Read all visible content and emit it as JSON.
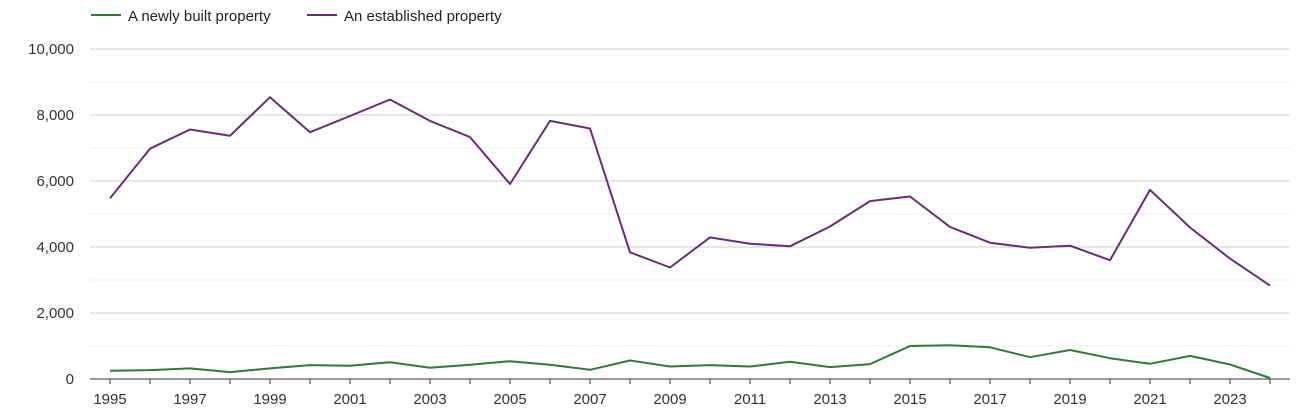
{
  "chart_data": {
    "type": "line",
    "title": "",
    "xlabel": "",
    "ylabel": "",
    "x": [
      1995,
      1996,
      1997,
      1998,
      1999,
      2000,
      2001,
      2002,
      2003,
      2004,
      2005,
      2006,
      2007,
      2008,
      2009,
      2010,
      2011,
      2012,
      2013,
      2014,
      2015,
      2016,
      2017,
      2018,
      2019,
      2020,
      2021,
      2022,
      2023,
      2024
    ],
    "x_tick_labels": [
      "1995",
      "1997",
      "1999",
      "2001",
      "2003",
      "2005",
      "2007",
      "2009",
      "2011",
      "2013",
      "2015",
      "2017",
      "2019",
      "2021",
      "2023"
    ],
    "x_ticks": [
      1995,
      1997,
      1999,
      2001,
      2003,
      2005,
      2007,
      2009,
      2011,
      2013,
      2015,
      2017,
      2019,
      2021,
      2023
    ],
    "y_tick_labels": [
      "0",
      "2,000",
      "4,000",
      "6,000",
      "8,000",
      "10,000"
    ],
    "y_ticks": [
      0,
      2000,
      4000,
      6000,
      8000,
      10000
    ],
    "ylim": [
      0,
      10000
    ],
    "grid": true,
    "legend_position": "top-left",
    "series": [
      {
        "name": "A newly built property",
        "color": "#2e7d32",
        "values": [
          250,
          270,
          320,
          210,
          320,
          420,
          400,
          510,
          340,
          430,
          540,
          430,
          280,
          560,
          380,
          420,
          380,
          520,
          360,
          450,
          1000,
          1020,
          960,
          660,
          880,
          630,
          460,
          700,
          440,
          30
        ]
      },
      {
        "name": "An established property",
        "color": "#6a2c7a",
        "values": [
          5480,
          6980,
          7560,
          7370,
          8540,
          7480,
          7970,
          8470,
          7820,
          7330,
          5910,
          7820,
          7590,
          3840,
          3380,
          4290,
          4100,
          4020,
          4620,
          5390,
          5530,
          4610,
          4130,
          3980,
          4040,
          3600,
          5730,
          4590,
          3650,
          2830
        ]
      }
    ]
  }
}
